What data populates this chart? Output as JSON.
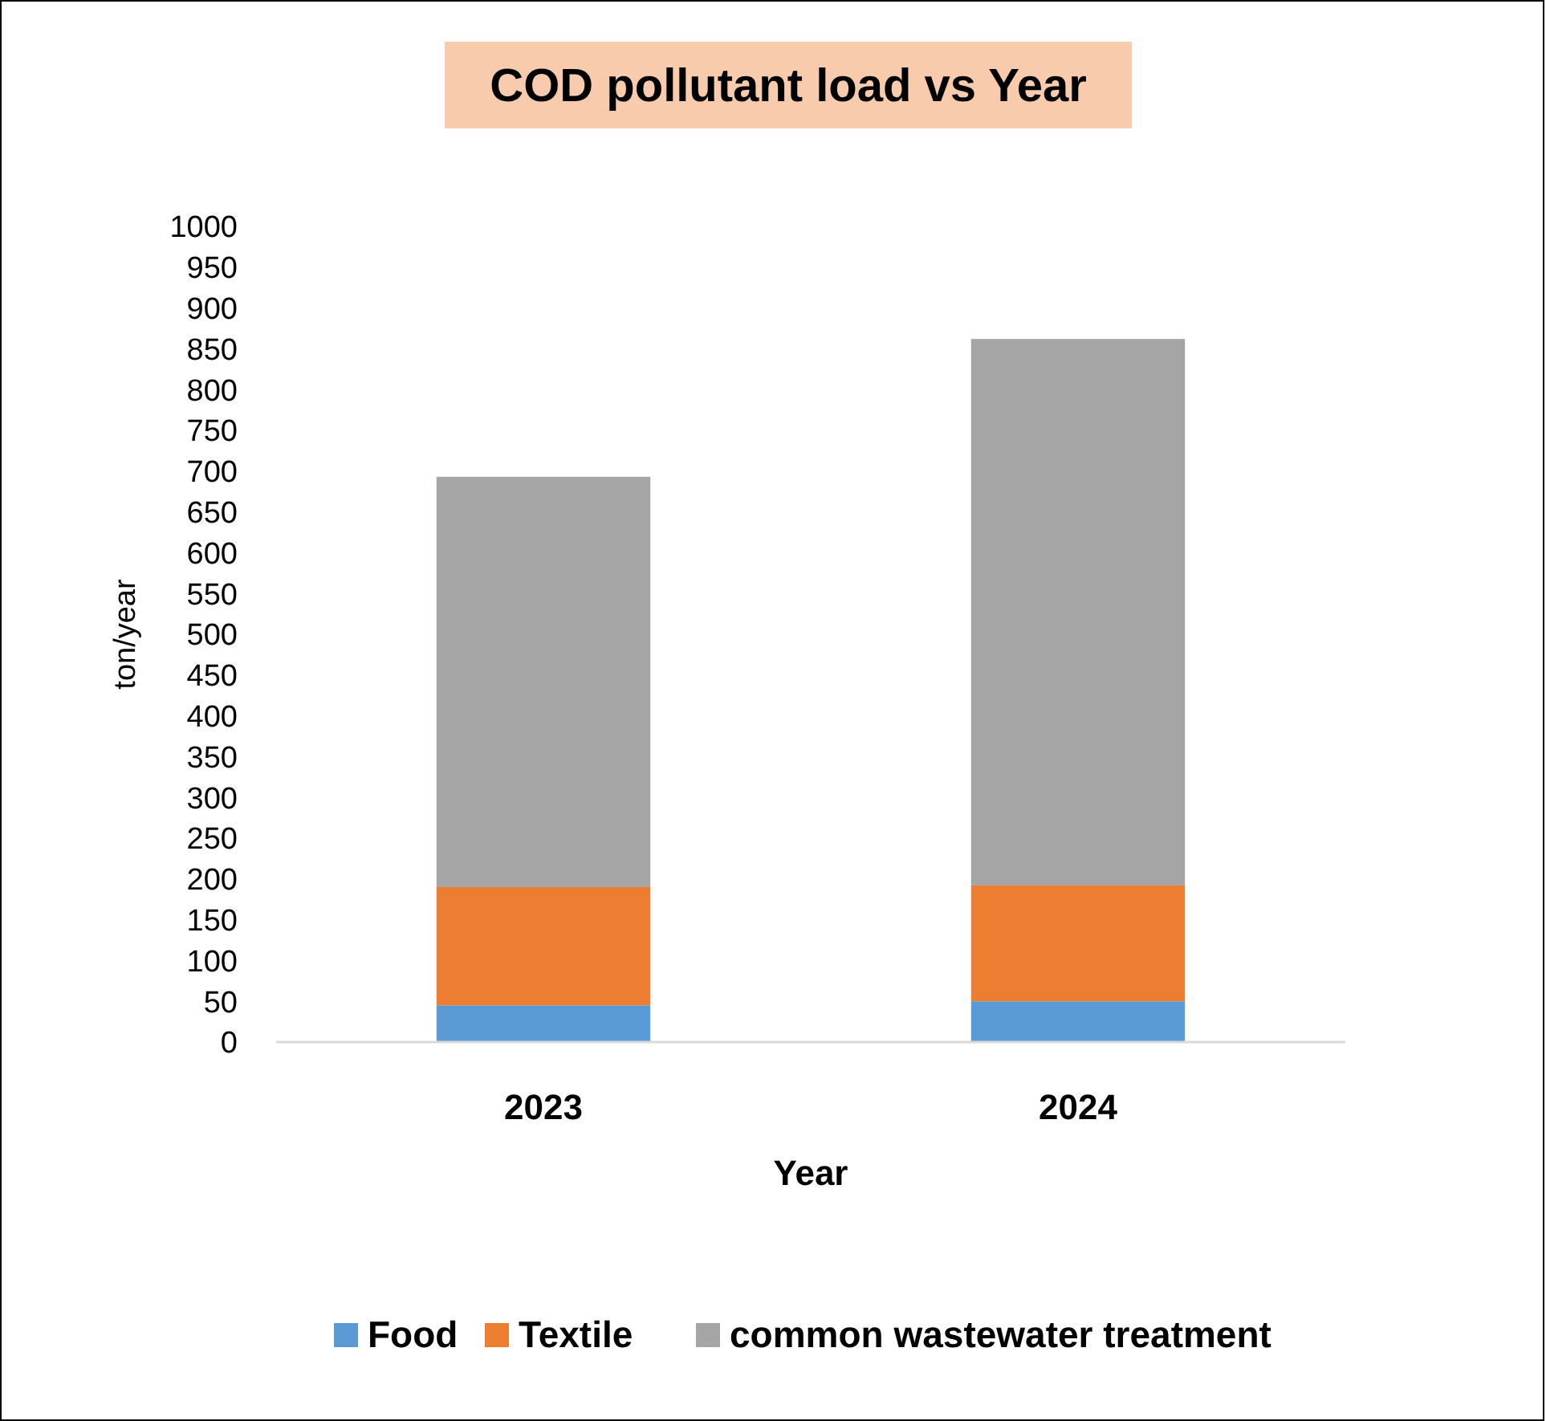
{
  "chart_data": {
    "type": "bar",
    "title": "COD pollutant load vs Year",
    "xlabel": "Year",
    "ylabel": "ton/year",
    "categories": [
      "2023",
      "2024"
    ],
    "stacked": true,
    "series": [
      {
        "name": "Food",
        "color": "#5b9bd5",
        "values": [
          45,
          50
        ]
      },
      {
        "name": "Textile",
        "color": "#ed7d31",
        "values": [
          145,
          142
        ]
      },
      {
        "name": "common wastewater treatment",
        "color": "#a5a5a5",
        "values": [
          503,
          670
        ]
      }
    ],
    "ylim": [
      0,
      1000
    ],
    "yticks": [
      0,
      50,
      100,
      150,
      200,
      250,
      300,
      350,
      400,
      450,
      500,
      550,
      600,
      650,
      700,
      750,
      800,
      850,
      900,
      950,
      1000
    ],
    "grid": false,
    "legend": "bottom"
  }
}
